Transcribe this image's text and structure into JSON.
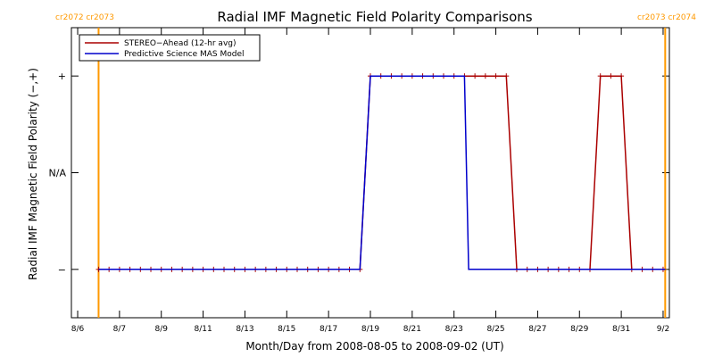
{
  "chart_data": {
    "type": "line",
    "title": "Radial IMF Magnetic Field Polarity Comparisons",
    "xlabel": "Month/Day from 2008-08-05 to 2008-09-02 (UT)",
    "ylabel": "Radial IMF Magnetic Field Polarity (−,+)",
    "xlim": [
      0,
      28.6
    ],
    "ylim": [
      -1.5,
      1.5
    ],
    "y_ticks": [
      {
        "value": 1,
        "label": "+"
      },
      {
        "value": 0,
        "label": "N/A"
      },
      {
        "value": -1,
        "label": "−"
      }
    ],
    "x_ticks": [
      {
        "value": 0.3,
        "label": "8/6"
      },
      {
        "value": 2.3,
        "label": "8/7"
      },
      {
        "value": 4.3,
        "label": "8/9"
      },
      {
        "value": 6.3,
        "label": "8/11"
      },
      {
        "value": 8.3,
        "label": "8/13"
      },
      {
        "value": 10.3,
        "label": "8/15"
      },
      {
        "value": 12.3,
        "label": "8/17"
      },
      {
        "value": 14.3,
        "label": "8/19"
      },
      {
        "value": 16.3,
        "label": "8/21"
      },
      {
        "value": 18.3,
        "label": "8/23"
      },
      {
        "value": 20.3,
        "label": "8/25"
      },
      {
        "value": 22.3,
        "label": "8/27"
      },
      {
        "value": 24.3,
        "label": "8/29"
      },
      {
        "value": 26.3,
        "label": "8/31"
      },
      {
        "value": 28.3,
        "label": "9/2"
      }
    ],
    "carrington_markers": [
      {
        "x": 1.3,
        "labels": [
          "cr2072",
          "cr2073"
        ]
      },
      {
        "x": 28.4,
        "labels": [
          "cr2073",
          "cr2074"
        ]
      }
    ],
    "legend_position": "top-left",
    "series": [
      {
        "name": "STEREO−Ahead (12-hr avg)",
        "color": "#aa0000",
        "markers": true,
        "x": [
          1.3,
          1.8,
          2.3,
          2.8,
          3.3,
          3.8,
          4.3,
          4.8,
          5.3,
          5.8,
          6.3,
          6.8,
          7.3,
          7.8,
          8.3,
          8.8,
          9.3,
          9.8,
          10.3,
          10.8,
          11.3,
          11.8,
          12.3,
          12.8,
          13.3,
          13.8,
          14.3,
          14.8,
          15.3,
          15.8,
          16.3,
          16.8,
          17.3,
          17.8,
          18.3,
          18.8,
          19.3,
          19.8,
          20.3,
          20.8,
          21.3,
          21.8,
          22.3,
          22.8,
          23.3,
          23.8,
          24.3,
          24.8,
          25.3,
          25.8,
          26.3,
          26.8,
          27.3,
          27.8,
          28.3
        ],
        "y": [
          -1,
          -1,
          -1,
          -1,
          -1,
          -1,
          -1,
          -1,
          -1,
          -1,
          -1,
          -1,
          -1,
          -1,
          -1,
          -1,
          -1,
          -1,
          -1,
          -1,
          -1,
          -1,
          -1,
          -1,
          -1,
          -1,
          1,
          1,
          1,
          1,
          1,
          1,
          1,
          1,
          1,
          1,
          1,
          1,
          1,
          1,
          -1,
          -1,
          -1,
          -1,
          -1,
          -1,
          -1,
          -1,
          1,
          1,
          1,
          -1,
          -1,
          -1,
          -1
        ]
      },
      {
        "name": "Predictive Science MAS Model",
        "color": "#0000cc",
        "markers": false,
        "x": [
          1.3,
          13.8,
          14.3,
          18.8,
          19.0,
          28.4
        ],
        "y": [
          -1,
          -1,
          1,
          1,
          -1,
          -1
        ]
      }
    ]
  }
}
